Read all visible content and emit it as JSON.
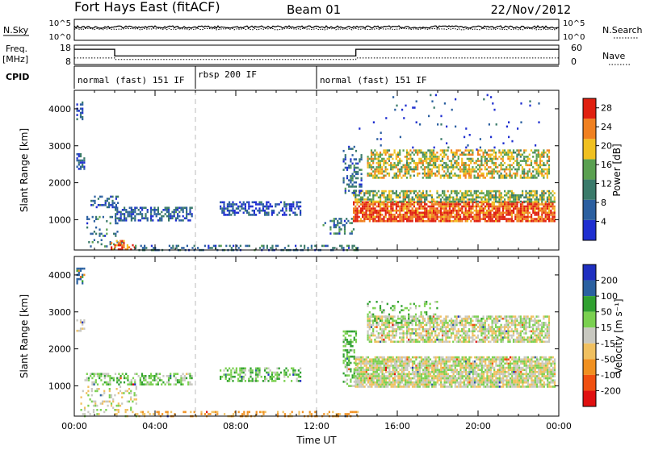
{
  "header": {
    "station": "Fort Hays East (fitACF)",
    "beam": "Beam 01",
    "date": "22/Nov/2012"
  },
  "top_panels": {
    "nsky_label": "N.Sky",
    "nsky_ticks": [
      "10^5",
      "10^0"
    ],
    "nsearch_label": "N.Search",
    "nsearch_ticks": [
      "10^5",
      "10^0"
    ],
    "freq_label": "Freq.",
    "freq_unit": "[MHz]",
    "freq_ticks": [
      "18",
      "8"
    ],
    "nave_label": "Nave",
    "nave_ticks": [
      "60",
      "0"
    ],
    "cpid_label": "CPID",
    "freq_series": {
      "hours": [
        0,
        2.0,
        2.0,
        13.95,
        13.95,
        24
      ],
      "mhz": [
        16.0,
        16.0,
        11.2,
        11.2,
        16.0,
        16.0
      ]
    },
    "nave_series": {
      "hours": [
        0,
        2.0,
        2.0,
        13.95,
        13.95,
        24
      ],
      "value": [
        22,
        22,
        17,
        17,
        22,
        22
      ]
    },
    "cpid_segments": [
      {
        "label": "normal (fast) 151 IF",
        "start": 0,
        "end": 6
      },
      {
        "label": "rbsp 200 IF",
        "start": 6,
        "end": 12
      },
      {
        "label": "normal (fast) 151 IF",
        "start": 12,
        "end": 24
      }
    ]
  },
  "chart_data": [
    {
      "type": "heatmap",
      "name": "Power",
      "ylabel": "Slant Range [km]",
      "xlabel": "",
      "xlim": [
        0,
        24
      ],
      "ylim": [
        180,
        4500
      ],
      "yticks": [
        "1000",
        "2000",
        "3000",
        "4000"
      ],
      "colorbar": {
        "label": "Power [dB]",
        "ticks": [
          "4",
          "8",
          "12",
          "16",
          "20",
          "24",
          "28"
        ],
        "range": [
          0,
          30
        ]
      },
      "colors": [
        "#1f2fd0",
        "#2b5fa0",
        "#3a7a6a",
        "#5aa050",
        "#f0c020",
        "#f08020",
        "#e02010"
      ],
      "regions": [
        {
          "t0": 0.1,
          "t1": 0.45,
          "r0": 3700,
          "r1": 4200,
          "db": 5,
          "d": 0.5
        },
        {
          "t0": 0.1,
          "t1": 0.5,
          "r0": 2400,
          "r1": 2800,
          "db": 6,
          "d": 0.45
        },
        {
          "t0": 0.8,
          "t1": 2.2,
          "r0": 1350,
          "r1": 1650,
          "db": 6,
          "d": 0.4
        },
        {
          "t0": 2.0,
          "t1": 5.8,
          "r0": 1000,
          "r1": 1350,
          "db": 7,
          "d": 0.6
        },
        {
          "t0": 0.6,
          "t1": 2.4,
          "r0": 300,
          "r1": 1100,
          "db": 10,
          "d": 0.18
        },
        {
          "t0": 1.8,
          "t1": 3.0,
          "r0": 180,
          "r1": 450,
          "db": 24,
          "d": 0.6
        },
        {
          "t0": 7.2,
          "t1": 11.2,
          "r0": 1150,
          "r1": 1500,
          "db": 5,
          "d": 0.55
        },
        {
          "t0": 3.0,
          "t1": 14.0,
          "r0": 180,
          "r1": 320,
          "db": 8,
          "d": 0.35
        },
        {
          "t0": 12.3,
          "t1": 13.8,
          "r0": 600,
          "r1": 1050,
          "db": 9,
          "d": 0.3
        },
        {
          "t0": 13.8,
          "t1": 23.8,
          "r0": 950,
          "r1": 1500,
          "db": 26,
          "d": 0.85
        },
        {
          "t0": 13.8,
          "t1": 23.8,
          "r0": 1500,
          "r1": 1800,
          "db": 16,
          "d": 0.65
        },
        {
          "t0": 14.5,
          "t1": 23.5,
          "r0": 2150,
          "r1": 2900,
          "db": 18,
          "d": 0.6
        },
        {
          "t0": 13.3,
          "t1": 14.2,
          "r0": 1700,
          "r1": 3000,
          "db": 8,
          "d": 0.4
        },
        {
          "t0": 14.0,
          "t1": 23.0,
          "r0": 2900,
          "r1": 4400,
          "db": 4,
          "d": 0.03
        }
      ]
    },
    {
      "type": "heatmap",
      "name": "Velocity",
      "ylabel": "Slant Range [km]",
      "xlabel": "Time UT",
      "xlim": [
        0,
        24
      ],
      "ylim": [
        180,
        4500
      ],
      "xticks": [
        "00:00",
        "04:00",
        "08:00",
        "12:00",
        "16:00",
        "20:00",
        "00:00"
      ],
      "yticks": [
        "1000",
        "2000",
        "3000",
        "4000"
      ],
      "colorbar": {
        "label": "Velocity [m s⁻¹]",
        "ticks": [
          "200",
          "100",
          "50",
          "15",
          "-15",
          "-50",
          "-100",
          "-200"
        ],
        "range": [
          -250,
          250
        ]
      },
      "colors": [
        "#e01010",
        "#f05010",
        "#f09020",
        "#f0c060",
        "#c8c8c0",
        "#7ad050",
        "#30a030",
        "#2a60a0",
        "#1f2fc0"
      ],
      "regions": [
        {
          "t0": 0.1,
          "t1": 0.5,
          "r0": 3800,
          "r1": 4200,
          "v": 120,
          "d": 0.5
        },
        {
          "t0": 0.1,
          "t1": 0.5,
          "r0": 2500,
          "r1": 2800,
          "v": 0,
          "d": 0.4
        },
        {
          "t0": 0.5,
          "t1": 5.8,
          "r0": 1050,
          "r1": 1350,
          "v": 30,
          "d": 0.5
        },
        {
          "t0": 0.3,
          "t1": 3.2,
          "r0": 180,
          "r1": 1000,
          "v": 0,
          "d": 0.2
        },
        {
          "t0": 7.2,
          "t1": 11.2,
          "r0": 1150,
          "r1": 1500,
          "v": 40,
          "d": 0.55
        },
        {
          "t0": 3.0,
          "t1": 14.0,
          "r0": 180,
          "r1": 320,
          "v": -60,
          "d": 0.35
        },
        {
          "t0": 13.3,
          "t1": 14.0,
          "r0": 1000,
          "r1": 2500,
          "v": 45,
          "d": 0.45
        },
        {
          "t0": 13.9,
          "t1": 23.8,
          "r0": 1000,
          "r1": 1800,
          "v": 0,
          "d": 0.85
        },
        {
          "t0": 14.5,
          "t1": 23.5,
          "r0": 2200,
          "r1": 2900,
          "v": 0,
          "d": 0.7
        },
        {
          "t0": 14.5,
          "t1": 18.0,
          "r0": 2700,
          "r1": 3300,
          "v": 40,
          "d": 0.2
        }
      ]
    }
  ]
}
